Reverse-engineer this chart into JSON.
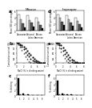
{
  "title_a": "Misuse",
  "title_d": "Improper",
  "panel_a": {
    "n_groups": 3,
    "n_sub": 4,
    "colors": [
      "#ffffff",
      "#bbbbbb",
      "#555555",
      "#000000"
    ],
    "values": [
      [
        4.8,
        3.5,
        2.2,
        1.0
      ],
      [
        4.5,
        3.2,
        2.5,
        1.3
      ],
      [
        3.8,
        2.8,
        1.8,
        0.8
      ]
    ],
    "xtick_labels": [
      "Caucasian",
      "Chicano/\nLatino",
      "African\nAmerican"
    ],
    "ylabel": "Mean (SD) per category",
    "ylim": [
      0,
      6
    ],
    "yticks": [
      0,
      2,
      4,
      6
    ]
  },
  "panel_d": {
    "n_groups": 3,
    "n_sub": 4,
    "colors": [
      "#ffffff",
      "#bbbbbb",
      "#555555",
      "#000000"
    ],
    "values": [
      [
        4.9,
        3.8,
        2.8,
        1.8
      ],
      [
        4.6,
        3.5,
        2.5,
        1.5
      ],
      [
        3.9,
        3.0,
        2.0,
        1.0
      ]
    ],
    "xtick_labels": [
      "Caucasian",
      "Chicano/\nLatino",
      "African\nAmerican"
    ],
    "ylabel": "Mean (SD) per category",
    "ylim": [
      0,
      6
    ],
    "yticks": [
      0,
      2,
      4,
      6
    ]
  },
  "panel_b": {
    "xlabel": "NaCl (% in drinking water)",
    "ylabel": "Cumulative survival (%)",
    "xlim": [
      0,
      8
    ],
    "ylim": [
      0,
      100
    ],
    "xticks": [
      0,
      2,
      4,
      6,
      8
    ],
    "yticks": [
      0,
      25,
      50,
      75,
      100
    ],
    "series": [
      {
        "x": [
          0,
          0.5,
          1,
          1.5,
          2,
          2.5,
          3,
          3.5,
          4,
          4.5,
          5,
          5.5,
          6,
          6.5,
          7,
          7.5,
          8
        ],
        "y": [
          100,
          100,
          95,
          90,
          82,
          72,
          60,
          50,
          40,
          30,
          22,
          15,
          10,
          6,
          3,
          1,
          0
        ],
        "marker": "s",
        "mfc": "#000000",
        "color": "#000000"
      },
      {
        "x": [
          0,
          0.5,
          1,
          1.5,
          2,
          2.5,
          3,
          3.5,
          4,
          4.5,
          5,
          5.5,
          6,
          6.5,
          7,
          7.5,
          8
        ],
        "y": [
          100,
          98,
          90,
          80,
          68,
          55,
          42,
          32,
          22,
          15,
          9,
          5,
          3,
          1,
          0,
          0,
          0
        ],
        "marker": "o",
        "mfc": "#000000",
        "color": "#000000"
      },
      {
        "x": [
          0,
          0.5,
          1,
          1.5,
          2,
          2.5,
          3,
          3.5,
          4,
          4.5,
          5
        ],
        "y": [
          100,
          95,
          82,
          65,
          48,
          32,
          20,
          11,
          5,
          2,
          0
        ],
        "marker": "^",
        "mfc": "#ffffff",
        "color": "#000000"
      }
    ]
  },
  "panel_e": {
    "xlabel": "NaCl (% in drinking water)",
    "ylabel": "Cumulative survival (%)",
    "xlim": [
      0,
      8
    ],
    "ylim": [
      0,
      100
    ],
    "xticks": [
      0,
      2,
      4,
      6,
      8
    ],
    "yticks": [
      0,
      25,
      50,
      75,
      100
    ],
    "series": [
      {
        "x": [
          0,
          0.5,
          1,
          1.5,
          2,
          2.5,
          3,
          3.5,
          4,
          4.5,
          5,
          5.5,
          6,
          6.5,
          7,
          7.5,
          8
        ],
        "y": [
          100,
          100,
          96,
          88,
          78,
          65,
          52,
          40,
          28,
          19,
          12,
          7,
          4,
          2,
          1,
          0,
          0
        ],
        "marker": "s",
        "mfc": "#000000",
        "color": "#000000"
      },
      {
        "x": [
          0,
          0.5,
          1,
          1.5,
          2,
          2.5,
          3,
          3.5,
          4,
          4.5,
          5,
          5.5,
          6
        ],
        "y": [
          100,
          98,
          88,
          75,
          60,
          45,
          32,
          20,
          12,
          6,
          2,
          1,
          0
        ],
        "marker": "o",
        "mfc": "#000000",
        "color": "#000000"
      },
      {
        "x": [
          0,
          0.5,
          1,
          1.5,
          2,
          2.5,
          3,
          3.5,
          4
        ],
        "y": [
          100,
          92,
          78,
          58,
          40,
          24,
          12,
          4,
          0
        ],
        "marker": "^",
        "mfc": "#ffffff",
        "color": "#000000"
      }
    ]
  },
  "panel_c": {
    "categories": [
      "1",
      "2",
      "3",
      "4",
      "5",
      "6"
    ],
    "values_black": [
      6.0,
      0.6,
      0.4,
      0.25,
      0.18,
      0.12
    ],
    "values_gray": [
      0.4,
      0.25,
      0.18,
      0.12,
      0.08,
      0.05
    ],
    "ylabel": "% drinking",
    "ylim": [
      0,
      7
    ],
    "yticks": [
      0,
      2,
      4,
      6
    ]
  },
  "panel_f": {
    "categories": [
      "1",
      "2",
      "3",
      "4",
      "5",
      "6"
    ],
    "values_black": [
      5.2,
      0.7,
      0.45,
      0.28,
      0.18,
      0.1
    ],
    "values_gray": [
      0.5,
      0.28,
      0.18,
      0.12,
      0.08,
      0.04
    ],
    "ylabel": "% drinking",
    "ylim": [
      0,
      7
    ],
    "yticks": [
      0,
      2,
      4,
      6
    ]
  },
  "bg_color": "#ffffff"
}
